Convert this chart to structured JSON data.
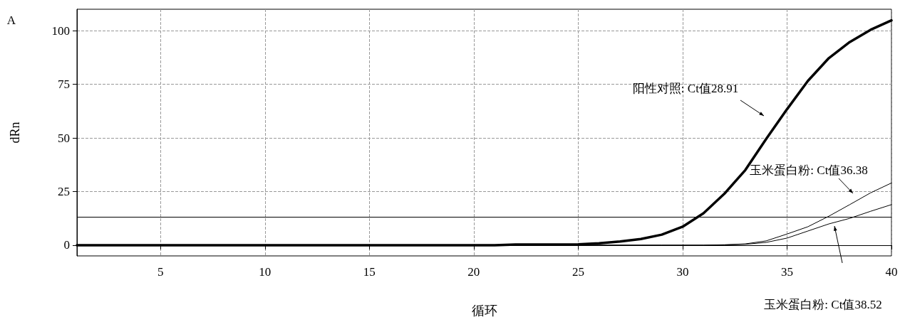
{
  "chart_data": {
    "type": "line",
    "xlabel": "循环",
    "ylabel": "dRn",
    "x": [
      1,
      2,
      3,
      4,
      5,
      6,
      7,
      8,
      9,
      10,
      11,
      12,
      13,
      14,
      15,
      16,
      17,
      18,
      19,
      20,
      21,
      22,
      23,
      24,
      25,
      26,
      27,
      28,
      29,
      30,
      31,
      32,
      33,
      34,
      35,
      36,
      37,
      38,
      39,
      40
    ],
    "series": [
      {
        "color": "#000000",
        "values": [
          0,
          0,
          0,
          0,
          0,
          0,
          0,
          0,
          0,
          0,
          0,
          0,
          0,
          0,
          0,
          0,
          0,
          0,
          0,
          0,
          0,
          0.3,
          0.3,
          0.3,
          0.4,
          0.9,
          1.7,
          2.9,
          4.9,
          8.6,
          14.9,
          24,
          35,
          49.5,
          63.4,
          76.6,
          87.2,
          94.7,
          100.4,
          104.8
        ]
      },
      {
        "color": "#000000",
        "values": [
          0,
          0,
          0,
          0,
          0,
          0,
          0,
          0,
          0,
          0,
          0,
          0,
          0,
          0,
          0,
          0,
          0,
          0,
          0,
          0,
          0,
          0,
          0,
          0,
          0,
          0,
          0,
          0,
          0,
          0,
          0,
          0.2,
          0.6,
          2,
          5.2,
          8.6,
          13.5,
          18.9,
          24.4,
          29
        ]
      },
      {
        "color": "#000000",
        "values": [
          0,
          0,
          0,
          0,
          0,
          0,
          0,
          0,
          0,
          0,
          0,
          0,
          0,
          0,
          0,
          0,
          0,
          0,
          0,
          0,
          0,
          0,
          0,
          0,
          0,
          0,
          0,
          0,
          0,
          0,
          0,
          0.1,
          0.4,
          1.3,
          3.3,
          6.6,
          9.9,
          12.5,
          15.8,
          18.9
        ]
      }
    ],
    "xlim": [
      1,
      40
    ],
    "xticks": [
      5,
      10,
      15,
      20,
      25,
      30,
      35,
      40
    ],
    "ylim": [
      -5,
      110
    ],
    "yticks": [
      0,
      25,
      50,
      75,
      100
    ],
    "ref_lines": [
      {
        "axis": "y",
        "value": 13,
        "color": "#000000"
      },
      {
        "axis": "y",
        "value": 0,
        "color": "#000000"
      }
    ],
    "annotations": [
      "A",
      "阳性对照: Ct值28.91",
      "玉米蛋白粉: Ct值36.38",
      "玉米蛋白粉: Ct值38.52"
    ],
    "grid": true,
    "marker": "none",
    "line_style": "solid"
  }
}
